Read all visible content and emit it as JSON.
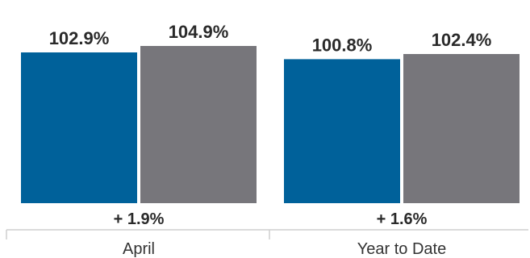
{
  "chart_data": {
    "type": "bar",
    "categories": [
      "April",
      "Year to Date"
    ],
    "series": [
      {
        "values": [
          102.9,
          100.8
        ],
        "labels": [
          "102.9%",
          "100.8%"
        ],
        "color": "#00619a"
      },
      {
        "values": [
          104.9,
          102.4
        ],
        "labels": [
          "104.9%",
          "102.4%"
        ],
        "color": "#77767b"
      }
    ],
    "differences": [
      "+ 1.9%",
      "+ 1.6%"
    ],
    "title": "",
    "xlabel": "",
    "ylabel": "",
    "grid": false,
    "legend": "none"
  }
}
